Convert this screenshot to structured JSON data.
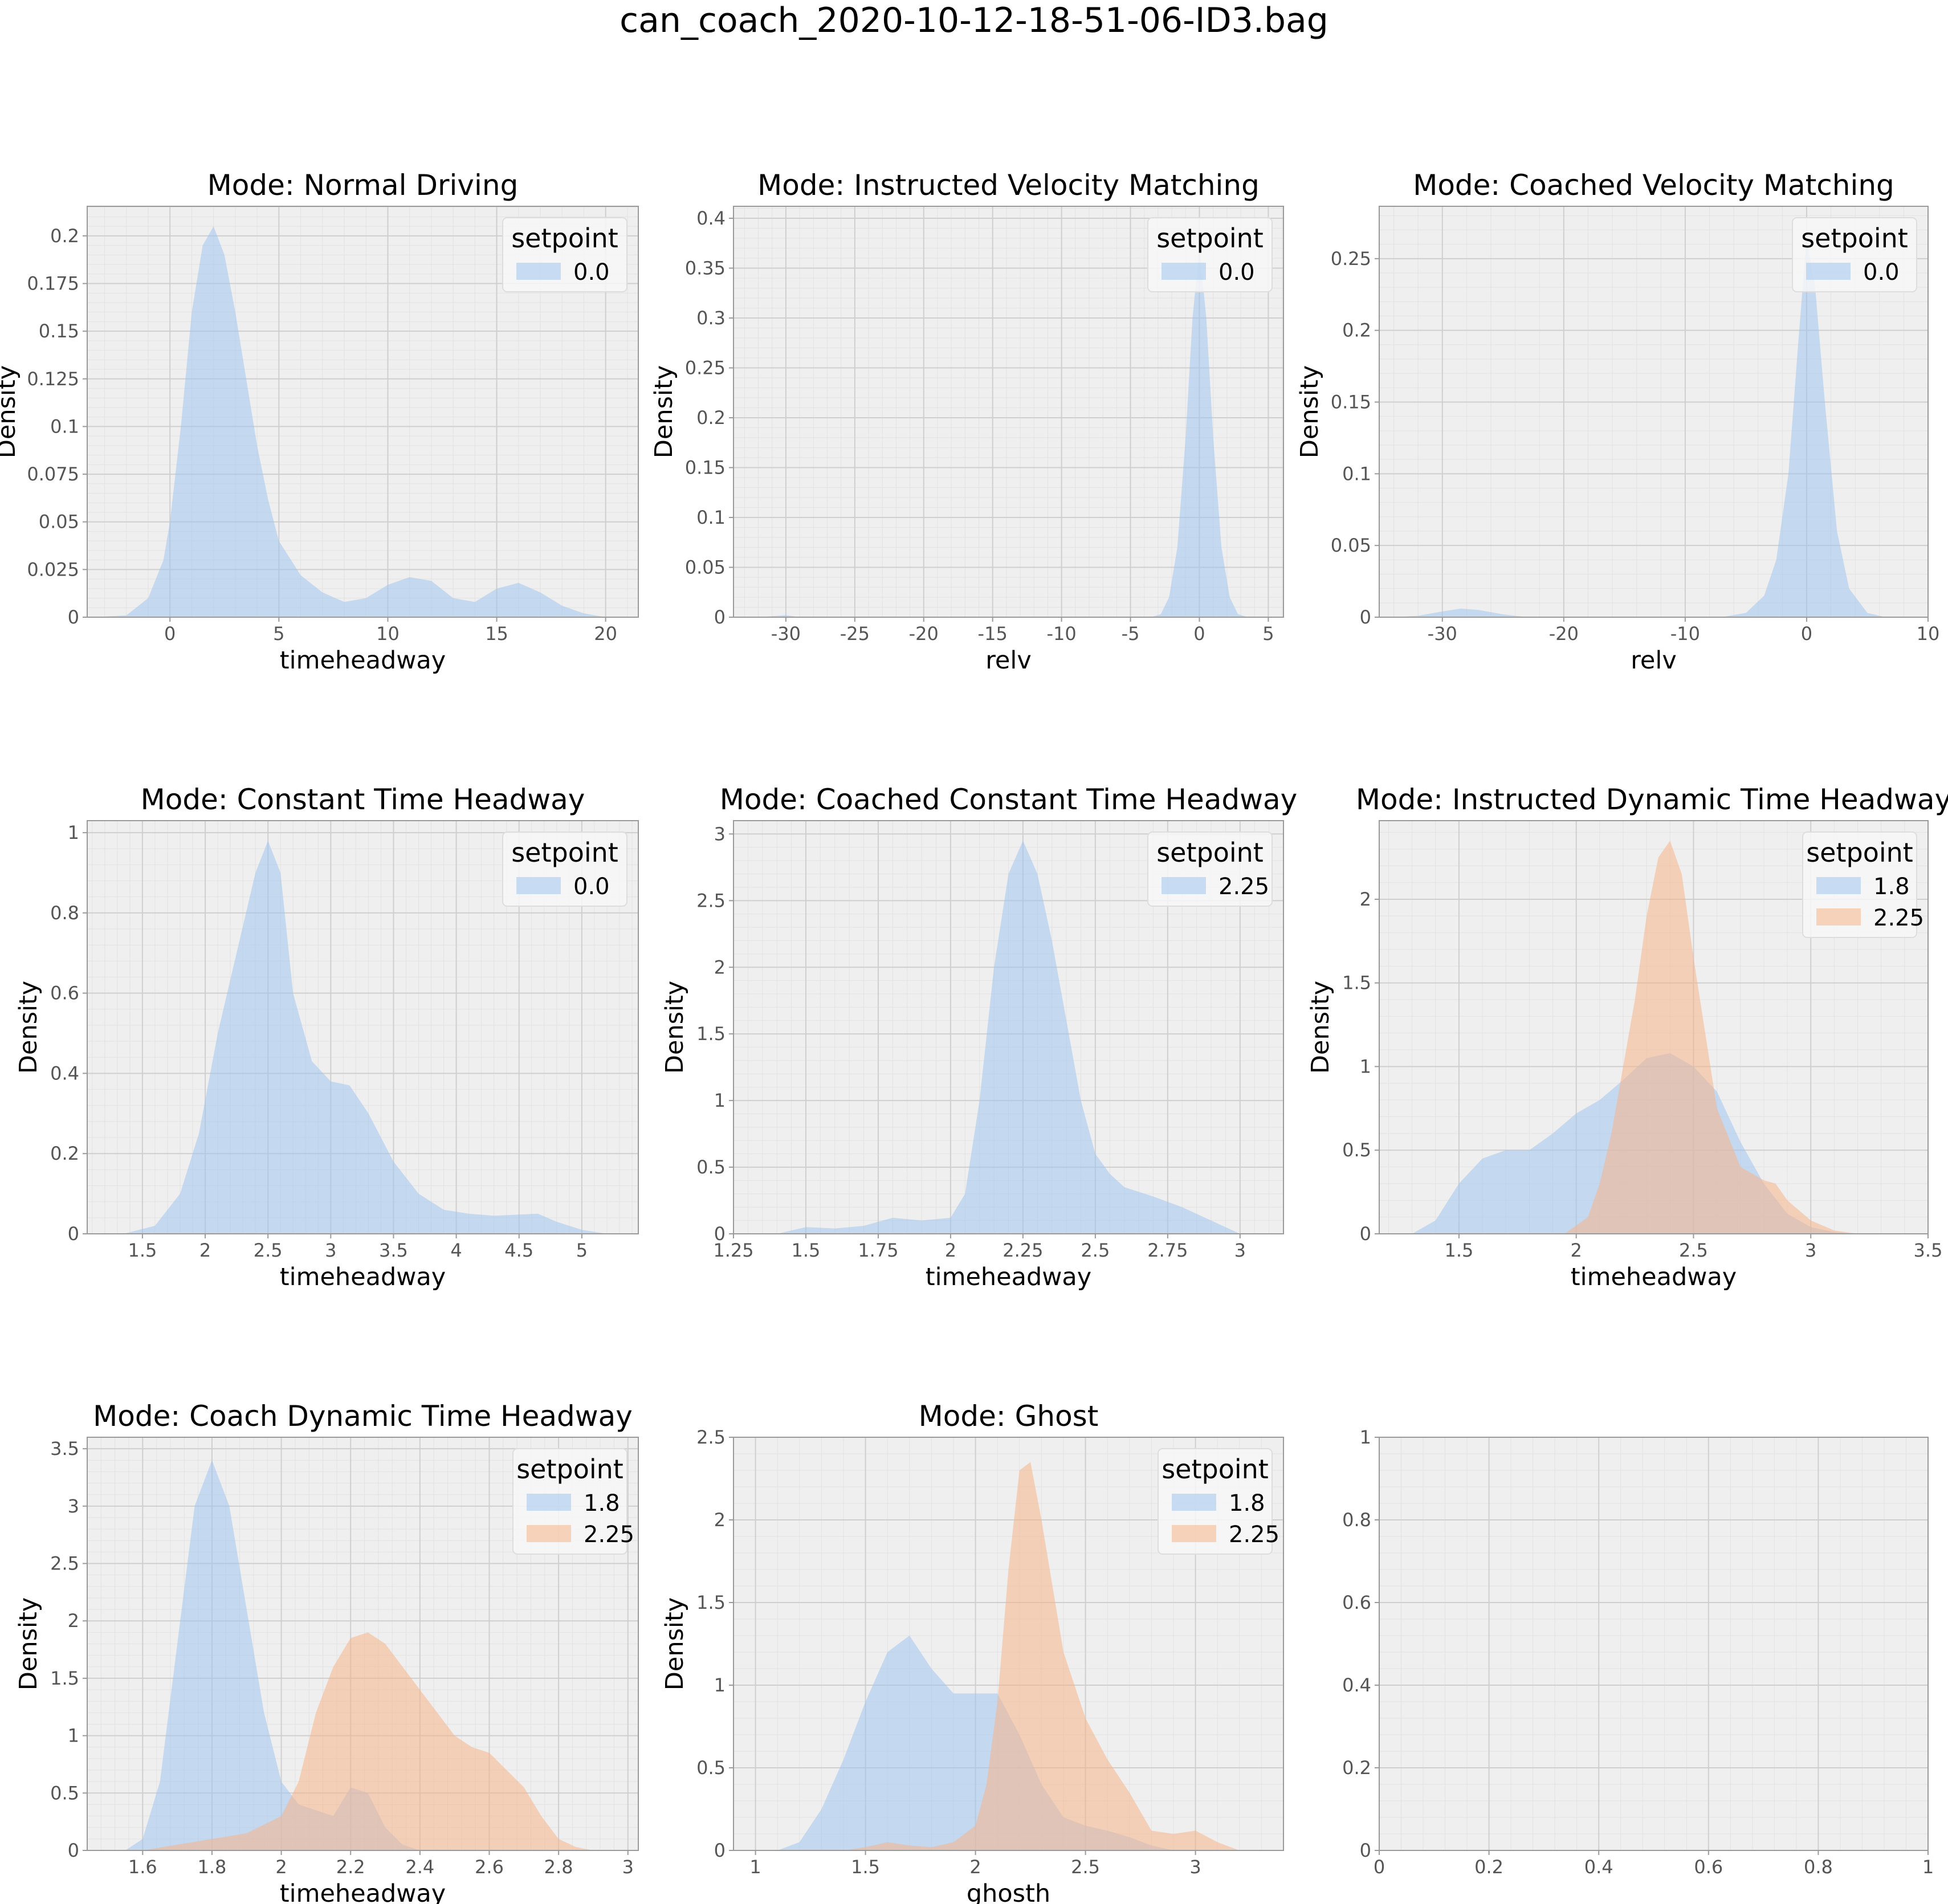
{
  "figure": {
    "title": "can_coach_2020-10-12-18-51-06-ID3.bag"
  },
  "colors": {
    "series_blue": "#a1c4ef",
    "series_orange": "#f7b58a",
    "axes_background": "#efefef",
    "spine": "#9a9a9a"
  },
  "chart_data": [
    {
      "type": "area",
      "title": "Mode: Normal Driving",
      "xlabel": "timeheadway",
      "ylabel": "Density",
      "xlim": [
        -3.8,
        21.5
      ],
      "ylim": [
        0,
        0.2155
      ],
      "xticks": [
        0,
        5,
        10,
        15,
        20
      ],
      "yticks": [
        0.0,
        0.025,
        0.05,
        0.075,
        0.1,
        0.125,
        0.15,
        0.175,
        0.2
      ],
      "ytick_labels": [
        "0.000",
        "0.025",
        "0.050",
        "0.075",
        "0.100",
        "0.125",
        "0.150",
        "0.175",
        "0.200"
      ],
      "grid": true,
      "legend": {
        "title": "setpoint",
        "position": "top-right",
        "entries": [
          "0.0"
        ]
      },
      "series": [
        {
          "name": "0.0",
          "color": "blue",
          "x": [
            -3.5,
            -2,
            -1,
            -0.3,
            0,
            0.5,
            1,
            1.5,
            2,
            2.5,
            3,
            3.5,
            4,
            4.5,
            5,
            6,
            7,
            8,
            9,
            10,
            11,
            12,
            13,
            14,
            15,
            16,
            17,
            18,
            19,
            20
          ],
          "y": [
            0,
            0.001,
            0.01,
            0.03,
            0.05,
            0.1,
            0.16,
            0.195,
            0.205,
            0.19,
            0.16,
            0.125,
            0.09,
            0.062,
            0.04,
            0.022,
            0.013,
            0.008,
            0.01,
            0.017,
            0.021,
            0.019,
            0.01,
            0.008,
            0.015,
            0.018,
            0.013,
            0.006,
            0.002,
            0
          ]
        }
      ]
    },
    {
      "type": "area",
      "title": "Mode: Instructed Velocity Matching",
      "xlabel": "relv",
      "ylabel": "Density",
      "xlim": [
        -33.8,
        6.1
      ],
      "ylim": [
        0,
        0.412
      ],
      "xticks": [
        -30,
        -25,
        -20,
        -15,
        -10,
        -5,
        0,
        5
      ],
      "xtick_labels": [
        "−30",
        "−25",
        "−20",
        "−15",
        "−10",
        "−5",
        "0",
        "5"
      ],
      "yticks": [
        0.0,
        0.05,
        0.1,
        0.15,
        0.2,
        0.25,
        0.3,
        0.35,
        0.4
      ],
      "ytick_labels": [
        "0.00",
        "0.05",
        "0.10",
        "0.15",
        "0.20",
        "0.25",
        "0.30",
        "0.35",
        "0.40"
      ],
      "grid": true,
      "legend": {
        "title": "setpoint",
        "position": "top-right",
        "entries": [
          "0.0"
        ]
      },
      "series": [
        {
          "name": "0.0",
          "color": "blue",
          "x": [
            -32,
            -30,
            -29,
            -3.5,
            -2.8,
            -2.2,
            -1.6,
            -1,
            -0.5,
            0,
            0.5,
            1,
            1.6,
            2.2,
            2.8,
            3.5
          ],
          "y": [
            0,
            0.002,
            0,
            0,
            0.003,
            0.02,
            0.07,
            0.18,
            0.3,
            0.37,
            0.3,
            0.18,
            0.07,
            0.02,
            0.003,
            0
          ]
        }
      ]
    },
    {
      "type": "area",
      "title": "Mode: Coached Velocity Matching",
      "xlabel": "relv",
      "ylabel": "Density",
      "xlim": [
        -35.2,
        10.0
      ],
      "ylim": [
        0,
        0.2865
      ],
      "xticks": [
        -30,
        -20,
        -10,
        0,
        10
      ],
      "xtick_labels": [
        "−30",
        "−20",
        "−10",
        "0",
        "10"
      ],
      "yticks": [
        0.0,
        0.05,
        0.1,
        0.15,
        0.2,
        0.25
      ],
      "ytick_labels": [
        "0.00",
        "0.05",
        "0.10",
        "0.15",
        "0.20",
        "0.25"
      ],
      "grid": true,
      "legend": {
        "title": "setpoint",
        "position": "top-right",
        "entries": [
          "0.0"
        ]
      },
      "series": [
        {
          "name": "0.0",
          "color": "blue",
          "x": [
            -34,
            -32,
            -30,
            -28.5,
            -27,
            -25,
            -23,
            -7,
            -5,
            -3.5,
            -2.5,
            -1.5,
            -0.7,
            0,
            0.7,
            1.5,
            2.5,
            3.5,
            5,
            6.5
          ],
          "y": [
            0,
            0.001,
            0.004,
            0.006,
            0.005,
            0.002,
            0,
            0,
            0.003,
            0.015,
            0.04,
            0.1,
            0.19,
            0.265,
            0.23,
            0.15,
            0.06,
            0.02,
            0.003,
            0
          ]
        }
      ]
    },
    {
      "type": "area",
      "title": "Mode: Constant Time Headway",
      "xlabel": "timeheadway",
      "ylabel": "Density",
      "xlim": [
        1.06,
        5.45
      ],
      "ylim": [
        0,
        1.03
      ],
      "xticks": [
        1.5,
        2.0,
        2.5,
        3.0,
        3.5,
        4.0,
        4.5,
        5.0
      ],
      "xtick_labels": [
        "1.5",
        "2.0",
        "2.5",
        "3.0",
        "3.5",
        "4.0",
        "4.5",
        "5.0"
      ],
      "yticks": [
        0.0,
        0.2,
        0.4,
        0.6,
        0.8,
        1.0
      ],
      "ytick_labels": [
        "0.0",
        "0.2",
        "0.4",
        "0.6",
        "0.8",
        "1.0"
      ],
      "grid": true,
      "legend": {
        "title": "setpoint",
        "position": "top-right",
        "entries": [
          "0.0"
        ]
      },
      "series": [
        {
          "name": "0.0",
          "color": "blue",
          "x": [
            1.35,
            1.6,
            1.8,
            1.95,
            2.1,
            2.25,
            2.4,
            2.5,
            2.6,
            2.7,
            2.85,
            3.0,
            3.15,
            3.3,
            3.5,
            3.7,
            3.9,
            4.1,
            4.3,
            4.5,
            4.65,
            4.8,
            5.0,
            5.2
          ],
          "y": [
            0,
            0.02,
            0.1,
            0.25,
            0.5,
            0.7,
            0.9,
            0.98,
            0.9,
            0.6,
            0.43,
            0.38,
            0.37,
            0.3,
            0.18,
            0.1,
            0.06,
            0.05,
            0.045,
            0.048,
            0.05,
            0.03,
            0.01,
            0
          ]
        }
      ]
    },
    {
      "type": "area",
      "title": "Mode: Coached Constant Time Headway",
      "xlabel": "timeheadway",
      "ylabel": "Density",
      "xlim": [
        1.25,
        3.15
      ],
      "ylim": [
        0,
        3.1
      ],
      "xticks": [
        1.25,
        1.5,
        1.75,
        2.0,
        2.25,
        2.5,
        2.75,
        3.0
      ],
      "xtick_labels": [
        "1.25",
        "1.50",
        "1.75",
        "2.00",
        "2.25",
        "2.50",
        "2.75",
        "3.00"
      ],
      "yticks": [
        0.0,
        0.5,
        1.0,
        1.5,
        2.0,
        2.5,
        3.0
      ],
      "ytick_labels": [
        "0.0",
        "0.5",
        "1.0",
        "1.5",
        "2.0",
        "2.5",
        "3.0"
      ],
      "grid": true,
      "legend": {
        "title": "setpoint",
        "position": "top-right",
        "entries": [
          "2.25"
        ]
      },
      "series": [
        {
          "name": "2.25",
          "color": "blue",
          "x": [
            1.4,
            1.5,
            1.6,
            1.7,
            1.8,
            1.9,
            2.0,
            2.05,
            2.1,
            2.15,
            2.2,
            2.25,
            2.3,
            2.35,
            2.4,
            2.45,
            2.5,
            2.55,
            2.6,
            2.7,
            2.8,
            2.9,
            3.0
          ],
          "y": [
            0,
            0.05,
            0.04,
            0.06,
            0.12,
            0.1,
            0.12,
            0.3,
            1.0,
            2.0,
            2.7,
            2.95,
            2.7,
            2.2,
            1.6,
            1.0,
            0.6,
            0.45,
            0.35,
            0.28,
            0.2,
            0.1,
            0
          ]
        }
      ]
    },
    {
      "type": "area",
      "title": "Mode: Instructed Dynamic Time Headway",
      "xlabel": "timeheadway",
      "ylabel": "Density",
      "xlim": [
        1.16,
        3.5
      ],
      "ylim": [
        0,
        2.47
      ],
      "xticks": [
        1.5,
        2.0,
        2.5,
        3.0,
        3.5
      ],
      "xtick_labels": [
        "1.5",
        "2.0",
        "2.5",
        "3.0",
        "3.5"
      ],
      "yticks": [
        0.0,
        0.5,
        1.0,
        1.5,
        2.0
      ],
      "ytick_labels": [
        "0.0",
        "0.5",
        "1.0",
        "1.5",
        "2.0"
      ],
      "grid": true,
      "legend": {
        "title": "setpoint",
        "position": "top-right",
        "entries": [
          "1.8",
          "2.25"
        ]
      },
      "series": [
        {
          "name": "1.8",
          "color": "blue",
          "x": [
            1.3,
            1.4,
            1.5,
            1.6,
            1.7,
            1.8,
            1.9,
            2.0,
            2.1,
            2.2,
            2.3,
            2.4,
            2.5,
            2.6,
            2.7,
            2.8,
            2.9,
            3.0,
            3.1,
            3.2
          ],
          "y": [
            0,
            0.08,
            0.3,
            0.45,
            0.5,
            0.5,
            0.6,
            0.72,
            0.8,
            0.92,
            1.05,
            1.08,
            1.0,
            0.85,
            0.55,
            0.3,
            0.12,
            0.04,
            0.01,
            0
          ]
        },
        {
          "name": "2.25",
          "color": "orange",
          "x": [
            1.95,
            2.05,
            2.1,
            2.15,
            2.2,
            2.25,
            2.3,
            2.35,
            2.4,
            2.45,
            2.5,
            2.55,
            2.6,
            2.7,
            2.8,
            2.85,
            2.9,
            3.0,
            3.1,
            3.2
          ],
          "y": [
            0,
            0.1,
            0.3,
            0.6,
            1.0,
            1.4,
            1.9,
            2.25,
            2.35,
            2.15,
            1.65,
            1.2,
            0.75,
            0.4,
            0.32,
            0.3,
            0.2,
            0.08,
            0.02,
            0
          ]
        }
      ]
    },
    {
      "type": "area",
      "title": "Mode: Coach Dynamic Time Headway",
      "xlabel": "timeheadway",
      "ylabel": "Density",
      "xlim": [
        1.44,
        3.03
      ],
      "ylim": [
        0,
        3.6
      ],
      "xticks": [
        1.6,
        1.8,
        2.0,
        2.2,
        2.4,
        2.6,
        2.8,
        3.0
      ],
      "xtick_labels": [
        "1.6",
        "1.8",
        "2.0",
        "2.2",
        "2.4",
        "2.6",
        "2.8",
        "3.0"
      ],
      "yticks": [
        0.0,
        0.5,
        1.0,
        1.5,
        2.0,
        2.5,
        3.0,
        3.5
      ],
      "ytick_labels": [
        "0.0",
        "0.5",
        "1.0",
        "1.5",
        "2.0",
        "2.5",
        "3.0",
        "3.5"
      ],
      "grid": true,
      "legend": {
        "title": "setpoint",
        "position": "top-right",
        "entries": [
          "1.8",
          "2.25"
        ]
      },
      "series": [
        {
          "name": "1.8",
          "color": "blue",
          "x": [
            1.55,
            1.6,
            1.65,
            1.7,
            1.75,
            1.8,
            1.85,
            1.9,
            1.95,
            2.0,
            2.05,
            2.1,
            2.15,
            2.2,
            2.25,
            2.3,
            2.35,
            2.4
          ],
          "y": [
            0,
            0.1,
            0.6,
            1.8,
            3.0,
            3.4,
            3.0,
            2.1,
            1.2,
            0.6,
            0.4,
            0.35,
            0.3,
            0.55,
            0.5,
            0.2,
            0.05,
            0
          ]
        },
        {
          "name": "2.25",
          "color": "orange",
          "x": [
            1.6,
            1.7,
            1.8,
            1.9,
            2.0,
            2.05,
            2.1,
            2.15,
            2.2,
            2.25,
            2.3,
            2.35,
            2.4,
            2.45,
            2.5,
            2.55,
            2.6,
            2.65,
            2.7,
            2.75,
            2.8,
            2.85,
            2.9
          ],
          "y": [
            0,
            0.05,
            0.1,
            0.15,
            0.3,
            0.6,
            1.2,
            1.6,
            1.85,
            1.9,
            1.8,
            1.6,
            1.4,
            1.2,
            1.0,
            0.9,
            0.85,
            0.7,
            0.55,
            0.3,
            0.1,
            0.03,
            0
          ]
        }
      ]
    },
    {
      "type": "area",
      "title": "Mode: Ghost",
      "xlabel": "ghosth",
      "ylabel": "Density",
      "xlim": [
        0.9,
        3.4
      ],
      "ylim": [
        0,
        2.5
      ],
      "xticks": [
        1.0,
        1.5,
        2.0,
        2.5,
        3.0
      ],
      "xtick_labels": [
        "1.0",
        "1.5",
        "2.0",
        "2.5",
        "3.0"
      ],
      "yticks": [
        0.0,
        0.5,
        1.0,
        1.5,
        2.0,
        2.5
      ],
      "ytick_labels": [
        "0.0",
        "0.5",
        "1.0",
        "1.5",
        "2.0",
        "2.5"
      ],
      "grid": true,
      "legend": {
        "title": "setpoint",
        "position": "top-right",
        "entries": [
          "1.8",
          "2.25"
        ]
      },
      "series": [
        {
          "name": "1.8",
          "color": "blue",
          "x": [
            1.1,
            1.2,
            1.3,
            1.4,
            1.5,
            1.6,
            1.7,
            1.8,
            1.9,
            2.0,
            2.1,
            2.2,
            2.3,
            2.4,
            2.5,
            2.6,
            2.7,
            2.8,
            2.9
          ],
          "y": [
            0,
            0.05,
            0.25,
            0.55,
            0.9,
            1.2,
            1.3,
            1.1,
            0.95,
            0.95,
            0.95,
            0.7,
            0.4,
            0.2,
            0.15,
            0.12,
            0.08,
            0.03,
            0
          ]
        },
        {
          "name": "2.25",
          "color": "orange",
          "x": [
            1.4,
            1.5,
            1.6,
            1.7,
            1.8,
            1.9,
            2.0,
            2.05,
            2.1,
            2.15,
            2.2,
            2.25,
            2.3,
            2.35,
            2.4,
            2.5,
            2.6,
            2.7,
            2.8,
            2.9,
            3.0,
            3.1,
            3.2
          ],
          "y": [
            0,
            0.02,
            0.05,
            0.03,
            0.02,
            0.05,
            0.15,
            0.4,
            0.9,
            1.7,
            2.3,
            2.35,
            2.0,
            1.6,
            1.2,
            0.8,
            0.55,
            0.35,
            0.12,
            0.1,
            0.12,
            0.05,
            0
          ]
        }
      ]
    },
    {
      "type": "area",
      "title": "",
      "xlabel": "",
      "ylabel": "",
      "xlim": [
        0,
        1
      ],
      "ylim": [
        0,
        1
      ],
      "xticks": [
        0.0,
        0.2,
        0.4,
        0.6,
        0.8,
        1.0
      ],
      "xtick_labels": [
        "0.0",
        "0.2",
        "0.4",
        "0.6",
        "0.8",
        "1.0"
      ],
      "yticks": [
        0.0,
        0.2,
        0.4,
        0.6,
        0.8,
        1.0
      ],
      "ytick_labels": [
        "0.0",
        "0.2",
        "0.4",
        "0.6",
        "0.8",
        "1.0"
      ],
      "grid": true,
      "series": []
    }
  ]
}
